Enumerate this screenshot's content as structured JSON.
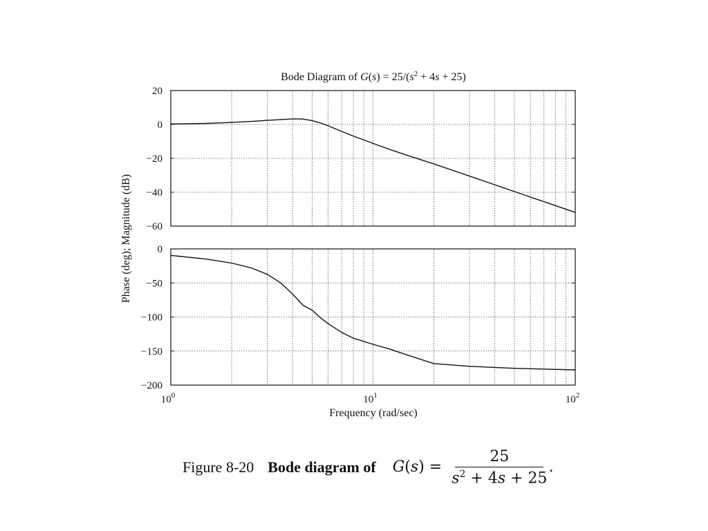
{
  "chart_data": [
    {
      "type": "line",
      "panel": "magnitude",
      "title": "Bode Diagram of G(s) = 25/(s2 + 4s + 25)",
      "x_scale": "log",
      "xlim": [
        1,
        100
      ],
      "ylim": [
        -60,
        20
      ],
      "y_ticks": [
        "20",
        "0",
        "−20",
        "−40",
        "−60"
      ],
      "grid": true,
      "series": [
        {
          "x": [
            1,
            1.5,
            2,
            2.5,
            3,
            3.5,
            4,
            4.5,
            5,
            5.5,
            6,
            7,
            8,
            10,
            12,
            15,
            20,
            30,
            50,
            70,
            100
          ],
          "values": [
            0.3,
            0.6,
            1.2,
            1.8,
            2.4,
            2.9,
            3.3,
            3.2,
            2.3,
            0.9,
            -0.8,
            -4.1,
            -6.9,
            -11.2,
            -14.6,
            -18.5,
            -23.3,
            -30.5,
            -39.6,
            -45.6,
            -51.9
          ]
        }
      ]
    },
    {
      "type": "line",
      "panel": "phase",
      "x_scale": "log",
      "xlim": [
        1,
        100
      ],
      "ylim": [
        -200,
        0
      ],
      "y_ticks": [
        "0",
        "−50",
        "−100",
        "−150",
        "−200"
      ],
      "x_tick_labels": [
        "10",
        "10",
        "10"
      ],
      "x_tick_exponents": [
        "0",
        "1",
        "2"
      ],
      "xlabel": "Frequency (rad/sec)",
      "grid": true,
      "series": [
        {
          "x": [
            1,
            1.5,
            2,
            2.5,
            3,
            3.5,
            4,
            4.5,
            5,
            5.5,
            6,
            7,
            8,
            10,
            12,
            15,
            20,
            30,
            50,
            100
          ],
          "values": [
            -9.5,
            -14.9,
            -20.8,
            -27.9,
            -37.3,
            -50.1,
            -66.3,
            -82.6,
            -90,
            -101.2,
            -109.7,
            -122.6,
            -131.2,
            -140.1,
            -146.8,
            -156.4,
            -168.4,
            -172.4,
            -175.3,
            -177.7
          ]
        }
      ]
    }
  ],
  "shared_ylabel": "Phase (deg); Magnitude (dB)",
  "caption": {
    "figure_label": "Figure 8-20",
    "description": "Bode diagram of",
    "formula_lhs": "G(s) =",
    "formula_numerator": "25",
    "formula_denominator": "s2 + 4s + 25",
    "formula_end": "."
  }
}
